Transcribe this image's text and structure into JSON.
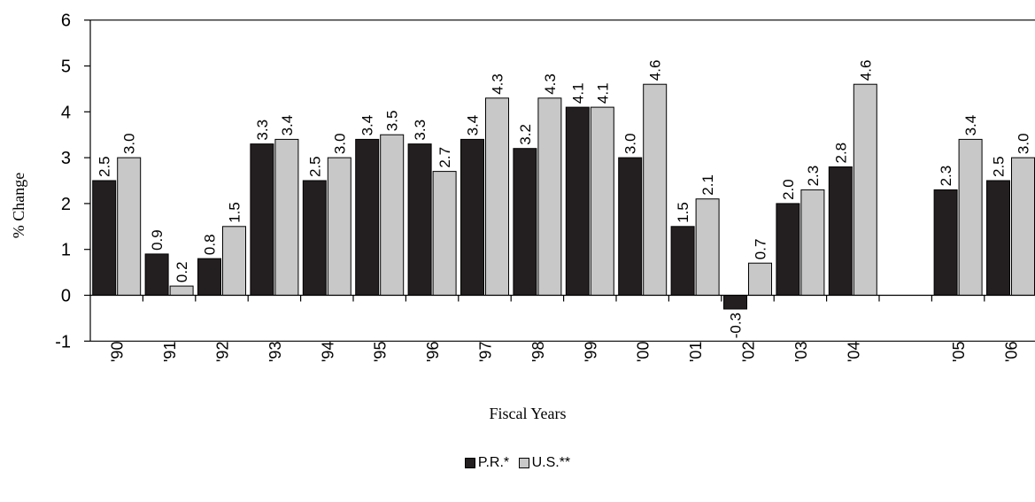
{
  "chart_data": {
    "type": "bar",
    "title": "",
    "xlabel": "Fiscal Years",
    "ylabel": "% Change",
    "ylim": [
      -1,
      6
    ],
    "yticks": [
      "-1",
      "0",
      "1",
      "2",
      "3",
      "4",
      "5",
      "6"
    ],
    "categories": [
      "'90",
      "'91",
      "'92",
      "'93",
      "'94",
      "'95",
      "'96",
      "'97",
      "'98",
      "'99",
      "'00",
      "'01",
      "'02",
      "'03",
      "'04",
      "",
      "'05",
      "'06"
    ],
    "series": [
      {
        "name": "P.R.*",
        "color": "#231f20",
        "values": [
          2.5,
          0.9,
          0.8,
          3.3,
          2.5,
          3.4,
          3.3,
          3.4,
          3.2,
          4.1,
          3.0,
          1.5,
          -0.3,
          2.0,
          2.8,
          null,
          2.3,
          2.5
        ],
        "labels": [
          "2.5",
          "0.9",
          "0.8",
          "3.3",
          "2.5",
          "3.4",
          "3.3",
          "3.4",
          "3.2",
          "4.1",
          "3.0",
          "1.5",
          "-0.3",
          "2.0",
          "2.8",
          "",
          "2.3",
          "2.5"
        ]
      },
      {
        "name": "U.S.**",
        "color": "#c8c8c8",
        "values": [
          3.0,
          0.2,
          1.5,
          3.4,
          3.0,
          3.5,
          2.7,
          4.3,
          4.3,
          4.1,
          4.6,
          2.1,
          0.7,
          2.3,
          4.6,
          null,
          3.4,
          3.0
        ],
        "labels": [
          "3.0",
          "0.2",
          "1.5",
          "3.4",
          "3.0",
          "3.5",
          "2.7",
          "4.3",
          "4.3",
          "4.1",
          "4.6",
          "2.1",
          "0.7",
          "2.3",
          "4.6",
          "",
          "3.4",
          "3.0"
        ]
      }
    ],
    "legend_position": "bottom-center",
    "grid": false
  }
}
